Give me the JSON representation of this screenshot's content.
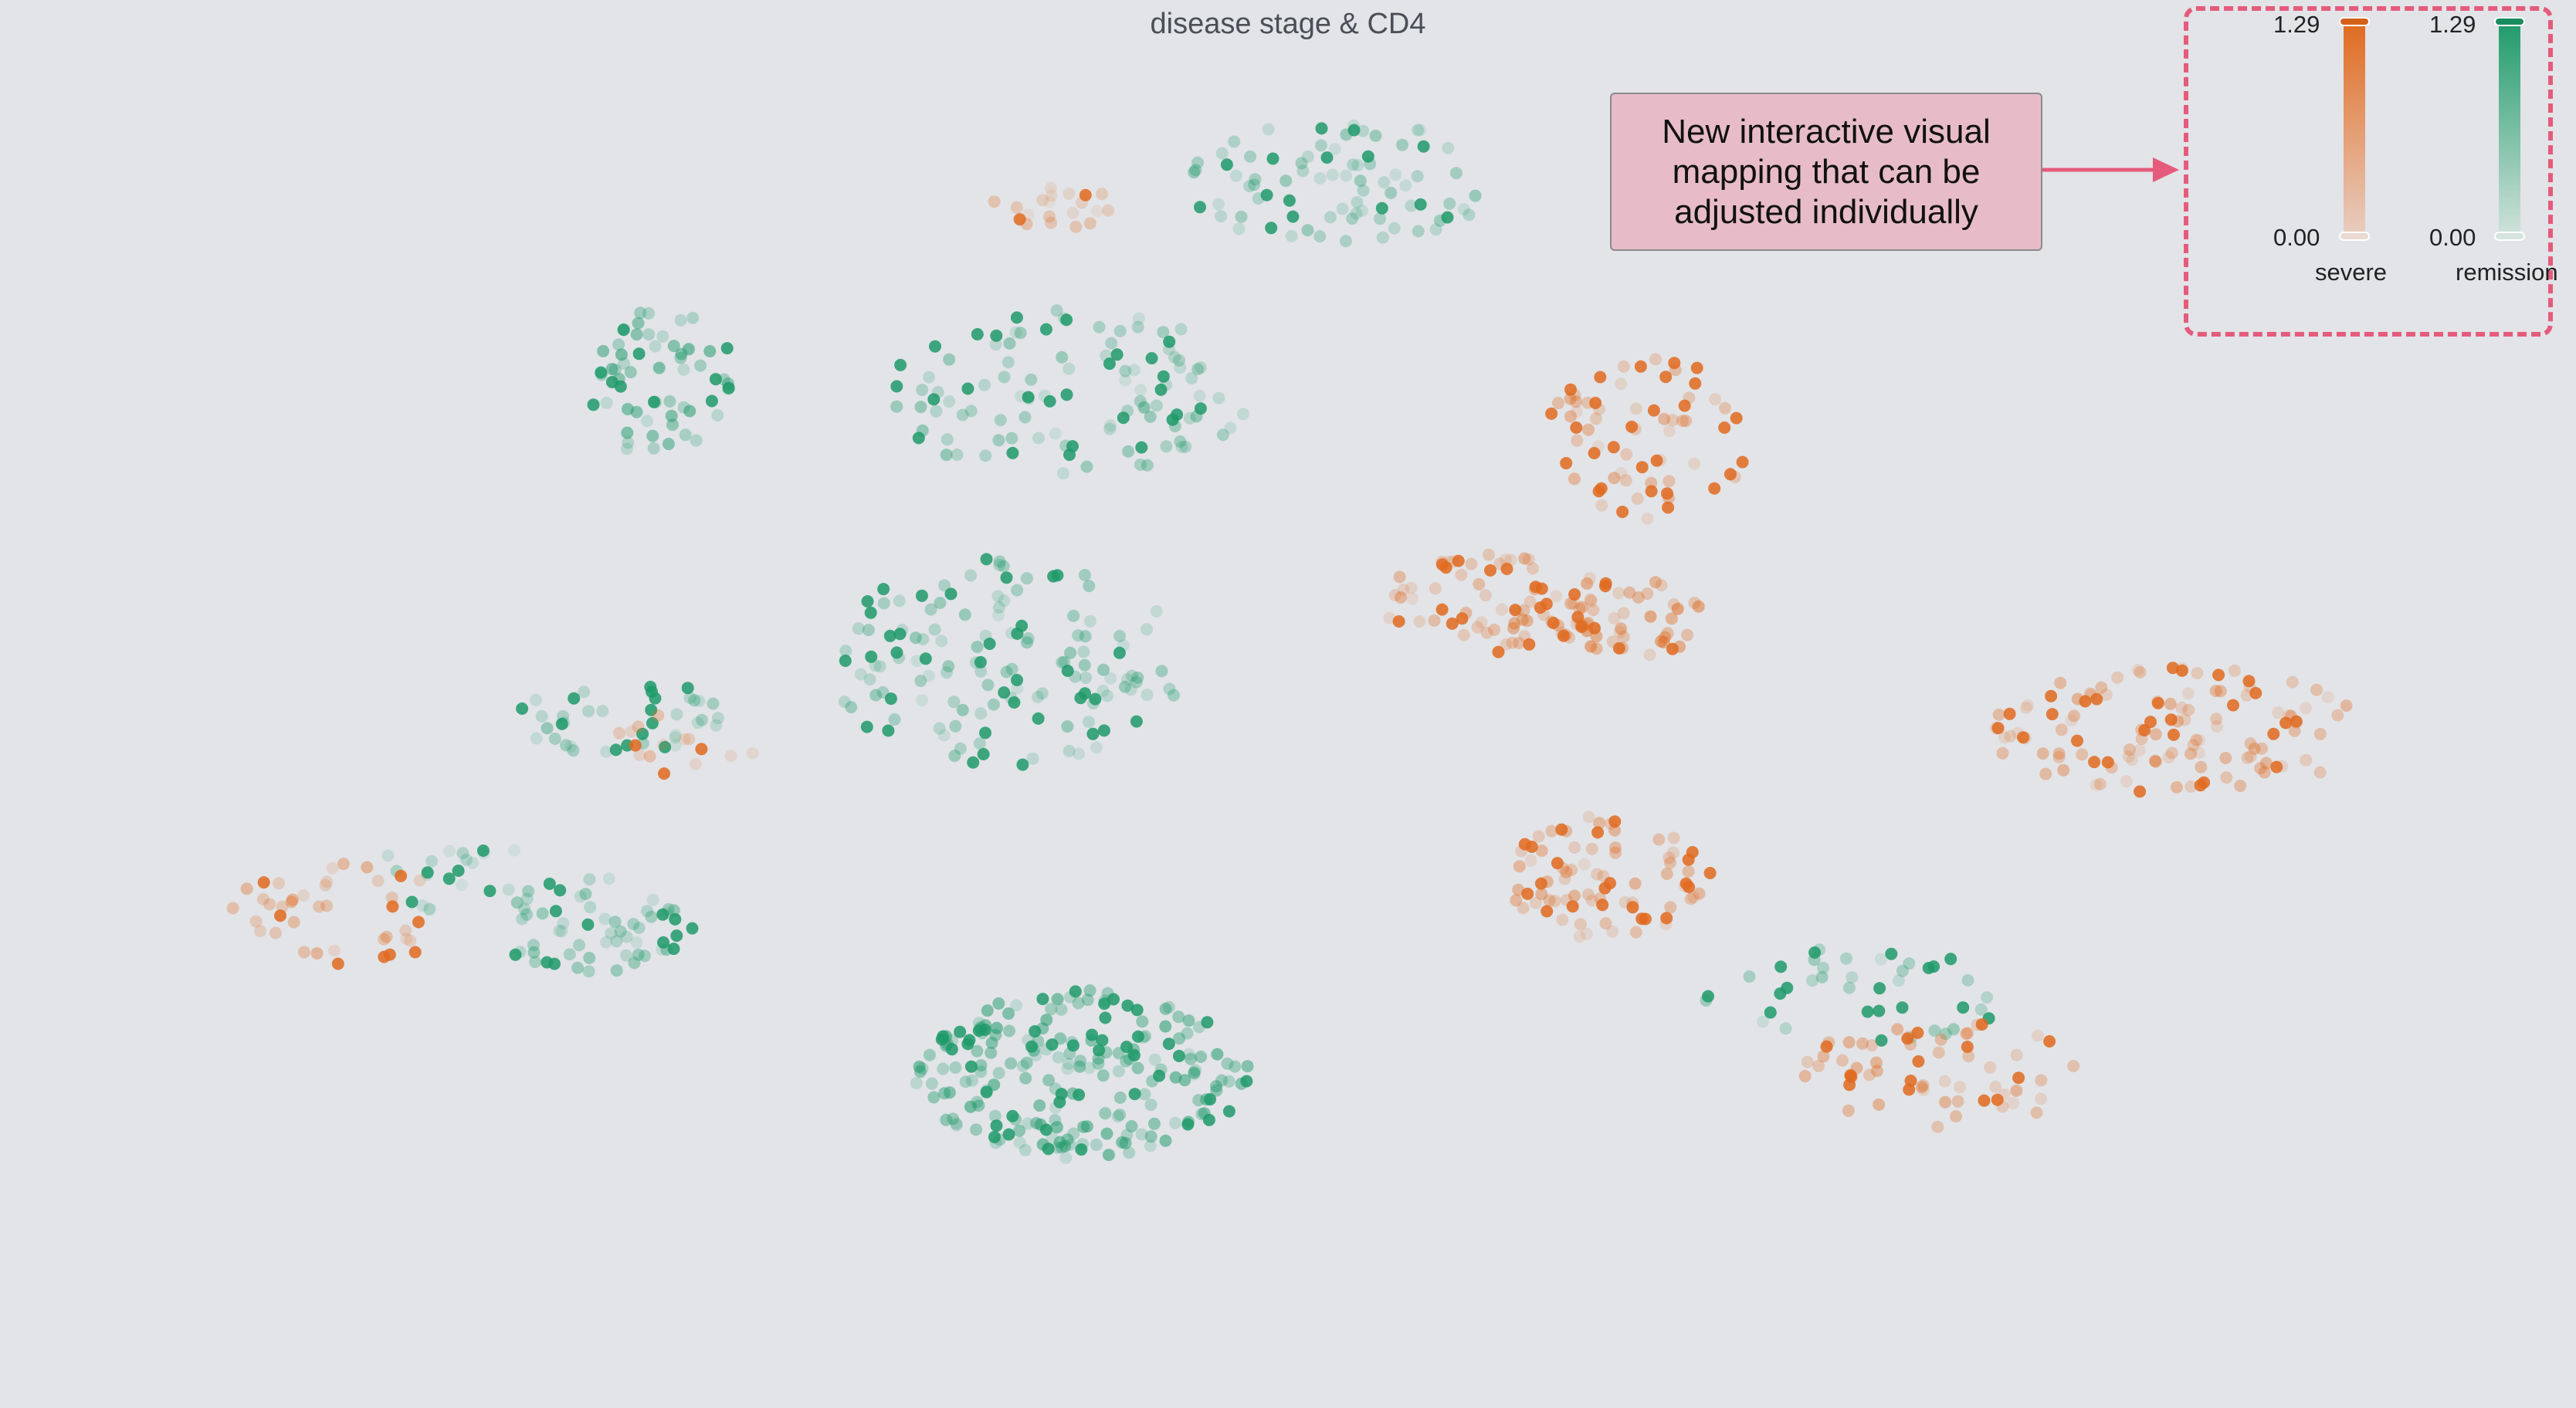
{
  "chart_data": {
    "type": "scatter",
    "title": "disease stage & CD4",
    "series": [
      {
        "name": "severe",
        "color": "#e06a1e"
      },
      {
        "name": "remission",
        "color": "#1e9a6a"
      }
    ],
    "clusters": [
      {
        "series": "remission",
        "cx": 0.42,
        "cy": 0.765,
        "rx": 0.065,
        "ry": 0.06,
        "n": 220,
        "density": "high"
      },
      {
        "series": "remission",
        "cx": 0.39,
        "cy": 0.47,
        "rx": 0.07,
        "ry": 0.075,
        "n": 140,
        "density": "medium"
      },
      {
        "series": "remission",
        "cx": 0.415,
        "cy": 0.28,
        "rx": 0.07,
        "ry": 0.06,
        "n": 110,
        "density": "medium"
      },
      {
        "series": "remission",
        "cx": 0.52,
        "cy": 0.13,
        "rx": 0.06,
        "ry": 0.045,
        "n": 80,
        "density": "medium"
      },
      {
        "series": "remission",
        "cx": 0.23,
        "cy": 0.66,
        "rx": 0.04,
        "ry": 0.035,
        "n": 60,
        "density": "medium"
      },
      {
        "series": "remission",
        "cx": 0.255,
        "cy": 0.27,
        "rx": 0.03,
        "ry": 0.055,
        "n": 60,
        "density": "high"
      },
      {
        "series": "remission",
        "cx": 0.24,
        "cy": 0.51,
        "rx": 0.04,
        "ry": 0.03,
        "n": 40,
        "density": "medium"
      },
      {
        "series": "remission",
        "cx": 0.175,
        "cy": 0.62,
        "rx": 0.03,
        "ry": 0.03,
        "n": 20,
        "density": "low"
      },
      {
        "series": "remission",
        "cx": 0.72,
        "cy": 0.71,
        "rx": 0.06,
        "ry": 0.035,
        "n": 40,
        "density": "medium"
      },
      {
        "series": "severe",
        "cx": 0.64,
        "cy": 0.31,
        "rx": 0.04,
        "ry": 0.06,
        "n": 70,
        "density": "medium"
      },
      {
        "series": "severe",
        "cx": 0.58,
        "cy": 0.43,
        "rx": 0.045,
        "ry": 0.035,
        "n": 70,
        "density": "medium"
      },
      {
        "series": "severe",
        "cx": 0.625,
        "cy": 0.44,
        "rx": 0.04,
        "ry": 0.03,
        "n": 50,
        "density": "high"
      },
      {
        "series": "severe",
        "cx": 0.625,
        "cy": 0.625,
        "rx": 0.04,
        "ry": 0.045,
        "n": 80,
        "density": "medium"
      },
      {
        "series": "severe",
        "cx": 0.845,
        "cy": 0.52,
        "rx": 0.075,
        "ry": 0.045,
        "n": 120,
        "density": "medium"
      },
      {
        "series": "severe",
        "cx": 0.755,
        "cy": 0.765,
        "rx": 0.055,
        "ry": 0.04,
        "n": 60,
        "density": "medium"
      },
      {
        "series": "severe",
        "cx": 0.135,
        "cy": 0.65,
        "rx": 0.045,
        "ry": 0.04,
        "n": 40,
        "density": "medium"
      },
      {
        "series": "severe",
        "cx": 0.41,
        "cy": 0.145,
        "rx": 0.025,
        "ry": 0.02,
        "n": 20,
        "density": "low"
      },
      {
        "series": "severe",
        "cx": 0.265,
        "cy": 0.53,
        "rx": 0.03,
        "ry": 0.025,
        "n": 15,
        "density": "low"
      }
    ]
  },
  "annotation": {
    "text": "New interactive visual mapping that can be adjusted individually"
  },
  "legend": {
    "severe": {
      "label": "severe",
      "max_label": "1.29",
      "min_label": "0.00",
      "color": "#e06a1e"
    },
    "remission": {
      "label": "remission",
      "max_label": "1.29",
      "min_label": "0.00",
      "color": "#1e9a6a"
    }
  }
}
